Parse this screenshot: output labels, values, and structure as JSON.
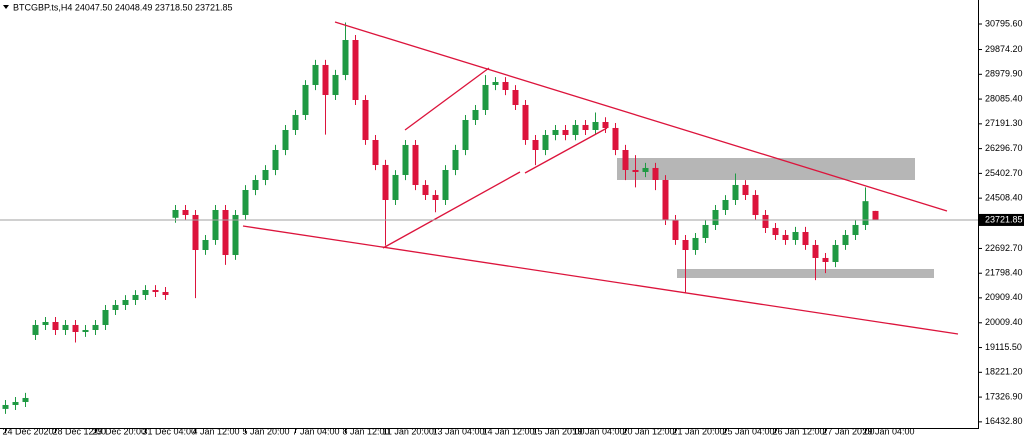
{
  "chart_data": {
    "type": "candlestick",
    "title": "BTCGBP.ts,H4  24047.50 24048.49 23718.50 23721.85",
    "categories": [
      "24 Dec 2020",
      null,
      null,
      null,
      null,
      "28 Dec 12:00",
      null,
      null,
      null,
      "29 Dec 20:00",
      null,
      null,
      null,
      null,
      "31 Dec 04:00",
      null,
      null,
      null,
      null,
      "4 Jan 12:00",
      null,
      null,
      null,
      null,
      "5 Jan 20:00",
      null,
      null,
      null,
      null,
      "7 Jan 04:00",
      null,
      null,
      null,
      null,
      "8 Jan 12:00",
      null,
      null,
      null,
      "11 Jan 20:00",
      null,
      null,
      null,
      null,
      "13 Jan 04:00",
      null,
      null,
      null,
      null,
      "14 Jan 12:00",
      null,
      null,
      null,
      null,
      "15 Jan 20:00",
      null,
      null,
      null,
      "19 Jan 04:00",
      null,
      null,
      null,
      null,
      "20 Jan 12:00",
      null,
      null,
      null,
      null,
      "21 Jan 20:00",
      null,
      null,
      null,
      null,
      "25 Jan 04:00",
      null,
      null,
      null,
      null,
      "26 Jan 12:00",
      null,
      null,
      null,
      null,
      "27 Jan 20:00",
      null,
      null,
      null,
      "29 Jan 04:00",
      null
    ],
    "open": [
      16900,
      17042,
      17150,
      19570,
      19930,
      20038,
      19749,
      19930,
      19677,
      19749,
      19930,
      20471,
      20652,
      20832,
      21013,
      21193,
      21121,
      23800,
      24081,
      23901,
      22637,
      22998,
      24081,
      22457,
      23901,
      24803,
      25164,
      25525,
      26247,
      26969,
      27511,
      28594,
      29316,
      28233,
      28955,
      30218,
      28052,
      26608,
      25706,
      24442,
      25345,
      26428,
      24984,
      24623,
      24442,
      25525,
      26247,
      27330,
      27691,
      28594,
      28702,
      28413,
      27872,
      26608,
      26247,
      26789,
      26969,
      26789,
      27150,
      26969,
      27258,
      27042,
      26247,
      25525,
      25453,
      25598,
      25164,
      23720,
      22998,
      22637,
      23071,
      23540,
      24081,
      24442,
      24984,
      24623,
      23901,
      23432,
      23179,
      22998,
      23287,
      22818,
      22349,
      22204,
      22818,
      23179,
      23540,
      24047.5
    ],
    "high": [
      17220,
      17330,
      17480,
      20110,
      20220,
      20220,
      20110,
      20110,
      19930,
      20110,
      20650,
      20830,
      21010,
      21190,
      21370,
      21370,
      21300,
      24260,
      24260,
      24080,
      23180,
      24260,
      24260,
      24080,
      24980,
      25340,
      25700,
      26430,
      27150,
      27690,
      28770,
      29500,
      29500,
      29140,
      30850,
      30400,
      28230,
      26790,
      25890,
      25520,
      26610,
      26610,
      25160,
      24800,
      25700,
      26430,
      27510,
      27870,
      28950,
      28880,
      28880,
      28590,
      28050,
      26790,
      26970,
      27150,
      27150,
      27330,
      27330,
      27600,
      27430,
      27220,
      26430,
      26060,
      25780,
      25780,
      25340,
      23900,
      23180,
      23250,
      23720,
      24260,
      24620,
      25400,
      25160,
      24800,
      24080,
      23610,
      23360,
      23470,
      23470,
      23000,
      22530,
      23000,
      23360,
      23720,
      24900,
      24048.49
    ],
    "low": [
      16720,
      16860,
      16970,
      19390,
      19750,
      19570,
      19570,
      19300,
      19500,
      19570,
      19750,
      20290,
      20470,
      20650,
      20830,
      20940,
      20830,
      23620,
      23720,
      20900,
      22460,
      22820,
      22100,
      22280,
      23720,
      24620,
      24980,
      25340,
      26060,
      26790,
      27330,
      28410,
      26800,
      28050,
      28770,
      27870,
      26430,
      25520,
      22800,
      24260,
      25160,
      24800,
      24440,
      24000,
      24260,
      25340,
      26060,
      27150,
      27510,
      28410,
      28230,
      27690,
      26430,
      25700,
      26060,
      26600,
      26600,
      26600,
      26790,
      26790,
      26860,
      26060,
      25160,
      24900,
      25270,
      24800,
      23540,
      22820,
      21100,
      22460,
      22890,
      23360,
      23900,
      24260,
      24440,
      23720,
      23250,
      23000,
      22820,
      22820,
      22640,
      21550,
      21800,
      22020,
      22640,
      23000,
      23360,
      23718.5
    ],
    "close": [
      17042,
      17150,
      17295,
      19930,
      20038,
      19749,
      19930,
      19677,
      19749,
      19930,
      20471,
      20652,
      20832,
      21013,
      21193,
      21121,
      21013,
      24081,
      23901,
      22637,
      22998,
      24081,
      22457,
      23901,
      24803,
      25164,
      25525,
      26247,
      26969,
      27511,
      28594,
      29316,
      28233,
      28955,
      30218,
      28052,
      26608,
      25706,
      24442,
      25345,
      26428,
      24984,
      24623,
      24442,
      25525,
      26247,
      27330,
      27691,
      28594,
      28702,
      28413,
      27872,
      26608,
      26247,
      26789,
      26969,
      26789,
      27150,
      26969,
      27258,
      27042,
      26247,
      25525,
      25453,
      25598,
      25164,
      23720,
      22998,
      22637,
      23071,
      23540,
      24081,
      24442,
      24984,
      24623,
      23901,
      23432,
      23179,
      22998,
      23287,
      22818,
      22349,
      22204,
      22818,
      23179,
      23540,
      24400,
      23721.85
    ],
    "up_color": "#1f9a43",
    "down_color": "#dc143c",
    "ylim": [
      16139,
      31662
    ],
    "yticks": [
      {
        "value": 30795.6,
        "label": "30795.60"
      },
      {
        "value": 29874.2,
        "label": "29874.20"
      },
      {
        "value": 28979.9,
        "label": "28979.90"
      },
      {
        "value": 28085.4,
        "label": "28085.40"
      },
      {
        "value": 27191.3,
        "label": "27191.30"
      },
      {
        "value": 26296.7,
        "label": "26296.70"
      },
      {
        "value": 25402.7,
        "label": "25402.70"
      },
      {
        "value": 24508.4,
        "label": "24508.40"
      },
      {
        "value": 22692.7,
        "label": "22692.70"
      },
      {
        "value": 21798.4,
        "label": "21798.40"
      },
      {
        "value": 20909.4,
        "label": "20909.40"
      },
      {
        "value": 20009.4,
        "label": "20009.40"
      },
      {
        "value": 19115.5,
        "label": "19115.50"
      },
      {
        "value": 18221.2,
        "label": "18221.20"
      },
      {
        "value": 17326.9,
        "label": "17326.90"
      },
      {
        "value": 16432.8,
        "label": "16432.80"
      }
    ]
  }
}
